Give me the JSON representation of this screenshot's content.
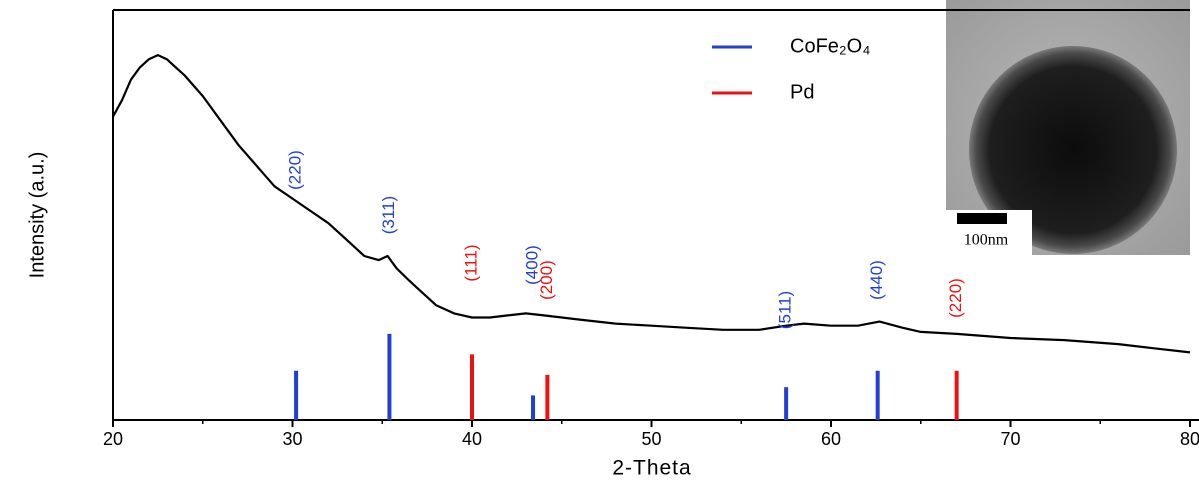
{
  "chart_data": {
    "type": "xrd",
    "x_label": "2-Theta",
    "y_label": "Intensity (a.u.)",
    "xlim": [
      20,
      80
    ],
    "ylim": [
      0,
      100
    ],
    "xticks": [
      20,
      30,
      40,
      50,
      60,
      70,
      80
    ],
    "pattern": {
      "color": "#000000",
      "x": [
        20,
        20.5,
        21,
        21.5,
        22,
        22.5,
        23,
        23.5,
        24,
        25,
        26,
        27,
        28,
        29,
        30,
        31,
        32,
        33,
        34,
        34.8,
        35.3,
        35.8,
        36.5,
        37,
        38,
        39,
        40,
        41,
        42,
        43,
        44,
        45,
        46,
        48,
        50,
        52,
        54,
        56,
        57.5,
        58.5,
        60,
        61.5,
        62.7,
        64,
        65,
        67,
        70,
        73,
        76,
        78,
        80
      ],
      "values": [
        74,
        78,
        83,
        86,
        88,
        89,
        88,
        86,
        84,
        79,
        73,
        67,
        62,
        57,
        54,
        51,
        48,
        44,
        40,
        39,
        40,
        37,
        34,
        32,
        28,
        26,
        25,
        25,
        25.5,
        26,
        25.5,
        25,
        24.5,
        23.5,
        23,
        22.5,
        22,
        22,
        23,
        23.5,
        23,
        23,
        24,
        22.5,
        21.5,
        21,
        20,
        19.5,
        18.5,
        17.5,
        16.5
      ]
    },
    "series": [
      {
        "name": "CoFe₂O₄",
        "color": "#1f3fd6",
        "x": [
          30.2,
          35.4,
          43.4,
          57.5,
          62.6
        ],
        "values": [
          12,
          21,
          6,
          8,
          12
        ],
        "labels": [
          "(220)",
          "(311)",
          "(400)",
          "(511)",
          "(440)"
        ]
      },
      {
        "name": "Pd",
        "color": "#ee1111",
        "x": [
          40.0,
          44.2,
          67.0
        ],
        "values": [
          16,
          11,
          12
        ],
        "labels": [
          "(111)",
          "(200)",
          "(220)"
        ]
      }
    ],
    "inset_scale_label": "100nm"
  }
}
